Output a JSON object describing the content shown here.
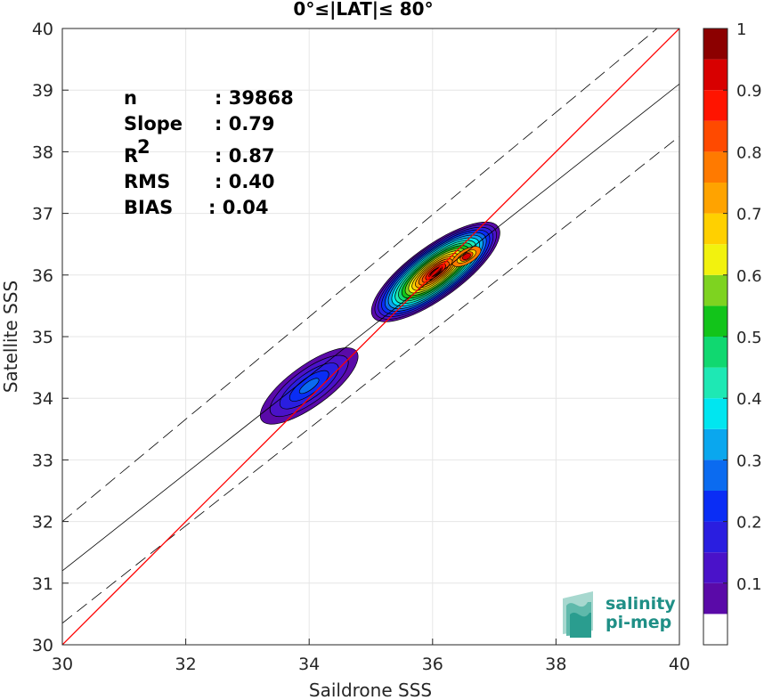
{
  "chart_data": {
    "type": "contour",
    "title": "0°≤|LAT|≤ 80°",
    "xlabel": "Saildrone SSS",
    "ylabel": "Satellite SSS",
    "xlim": [
      30,
      40
    ],
    "ylim": [
      30,
      40
    ],
    "xticks": [
      "30",
      "32",
      "34",
      "36",
      "38",
      "40"
    ],
    "yticks": [
      "30",
      "31",
      "32",
      "33",
      "34",
      "35",
      "36",
      "37",
      "38",
      "39",
      "40"
    ],
    "grid": true,
    "stats": [
      {
        "label": "n",
        "value": ": 39868"
      },
      {
        "label": "Slope",
        "value": ": 0.79"
      },
      {
        "label": "R",
        "sup": "2",
        "value": ": 0.87"
      },
      {
        "label": "RMS",
        "value": ": 0.40"
      },
      {
        "label": "BIAS",
        "value": ": 0.04"
      }
    ],
    "identity_line": {
      "x": [
        30,
        40
      ],
      "y": [
        30,
        40
      ],
      "color": "#ff0000"
    },
    "regression_line": {
      "x": [
        30,
        40
      ],
      "y": [
        31.2,
        39.1
      ],
      "color": "#000000"
    },
    "upper_dashed": {
      "x": [
        30,
        40
      ],
      "y": [
        32.0,
        40.3
      ]
    },
    "lower_dashed": {
      "x": [
        30,
        40
      ],
      "y": [
        30.35,
        38.25
      ]
    },
    "density_clusters": [
      {
        "center": [
          35.95,
          35.9
        ],
        "peak": 1.0
      },
      {
        "center": [
          34.0,
          34.2
        ],
        "peak": 0.3
      }
    ],
    "colorbar": {
      "ticks": [
        "0.1",
        "0.2",
        "0.3",
        "0.4",
        "0.5",
        "0.6",
        "0.7",
        "0.8",
        "0.9",
        "1"
      ],
      "range": [
        0,
        1
      ],
      "levels": [
        {
          "from": 0.0,
          "to": 0.05,
          "color": "#ffffff"
        },
        {
          "from": 0.05,
          "to": 0.1,
          "color": "#5a0aa8"
        },
        {
          "from": 0.1,
          "to": 0.15,
          "color": "#4a12c9"
        },
        {
          "from": 0.15,
          "to": 0.2,
          "color": "#2a1ee0"
        },
        {
          "from": 0.2,
          "to": 0.25,
          "color": "#0a2df5"
        },
        {
          "from": 0.25,
          "to": 0.3,
          "color": "#0b6bf0"
        },
        {
          "from": 0.3,
          "to": 0.35,
          "color": "#0aa7ee"
        },
        {
          "from": 0.35,
          "to": 0.4,
          "color": "#00e6f0"
        },
        {
          "from": 0.4,
          "to": 0.45,
          "color": "#1ee8b4"
        },
        {
          "from": 0.45,
          "to": 0.5,
          "color": "#10d870"
        },
        {
          "from": 0.5,
          "to": 0.55,
          "color": "#12c41a"
        },
        {
          "from": 0.55,
          "to": 0.6,
          "color": "#7ed320"
        },
        {
          "from": 0.6,
          "to": 0.65,
          "color": "#f2f20e"
        },
        {
          "from": 0.65,
          "to": 0.7,
          "color": "#ffd000"
        },
        {
          "from": 0.7,
          "to": 0.75,
          "color": "#ffa300"
        },
        {
          "from": 0.75,
          "to": 0.8,
          "color": "#ff7a00"
        },
        {
          "from": 0.8,
          "to": 0.85,
          "color": "#ff4a00"
        },
        {
          "from": 0.85,
          "to": 0.9,
          "color": "#ff1400"
        },
        {
          "from": 0.9,
          "to": 0.95,
          "color": "#d80000"
        },
        {
          "from": 0.95,
          "to": 1.0,
          "color": "#8c0000"
        }
      ]
    }
  },
  "logo": {
    "line1": "salinity",
    "line2": "pi-mep",
    "accent": "#1f8f86"
  }
}
